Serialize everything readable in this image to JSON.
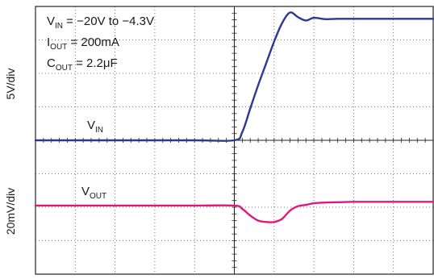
{
  "chart_data": {
    "type": "line",
    "title": "",
    "conditions": {
      "vin": {
        "main": "V",
        "sub": "IN",
        "rest": " = −20V to −4.3V"
      },
      "iout": {
        "main": "I",
        "sub": "OUT",
        "rest": " = 200mA"
      },
      "cout": {
        "main": "C",
        "sub": "OUT",
        "rest": " = 2.2μF"
      }
    },
    "y_scale_labels": {
      "top": "5V/div",
      "bottom": "20mV/div"
    },
    "grid": {
      "divisions_x": 10,
      "divisions_y": 8,
      "style": "dotted"
    },
    "x": [
      0.0,
      2.0,
      4.0,
      5.0,
      5.2,
      5.4,
      5.6,
      5.8,
      6.0,
      6.2,
      6.4,
      6.6,
      6.8,
      7.0,
      7.3,
      7.6,
      8.0,
      8.5,
      9.0,
      10.0
    ],
    "series": [
      {
        "label_main": "V",
        "label_sub": "IN",
        "color": "#2b3a8f",
        "values": [
          0.0,
          0.0,
          0.0,
          0.0,
          0.25,
          0.95,
          1.65,
          2.3,
          2.95,
          3.5,
          3.82,
          3.68,
          3.58,
          3.66,
          3.62,
          3.63,
          3.63,
          3.63,
          3.63,
          3.63
        ]
      },
      {
        "label_main": "V",
        "label_sub": "OUT",
        "color": "#e0177f",
        "values": [
          -1.95,
          -1.95,
          -1.95,
          -1.95,
          -2.05,
          -2.25,
          -2.4,
          -2.44,
          -2.44,
          -2.35,
          -2.1,
          -1.97,
          -1.93,
          -1.88,
          -1.86,
          -1.85,
          -1.84,
          -1.84,
          -1.84,
          -1.84
        ]
      }
    ],
    "ylim": [
      -4,
      4
    ],
    "xlim": [
      0,
      10
    ],
    "legend": "none"
  }
}
